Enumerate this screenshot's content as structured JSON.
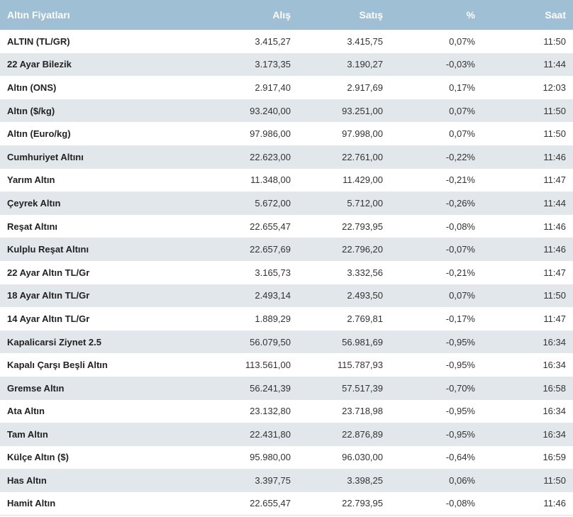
{
  "header": {
    "name": "Altın Fiyatları",
    "buy": "Alış",
    "sell": "Satış",
    "change": "%",
    "time": "Saat"
  },
  "rows": [
    {
      "name": "ALTIN (TL/GR)",
      "buy": "3.415,27",
      "sell": "3.415,75",
      "change": "0,07%",
      "time": "11:50"
    },
    {
      "name": "22 Ayar Bilezik",
      "buy": "3.173,35",
      "sell": "3.190,27",
      "change": "-0,03%",
      "time": "11:44"
    },
    {
      "name": "Altın (ONS)",
      "buy": "2.917,40",
      "sell": "2.917,69",
      "change": "0,17%",
      "time": "12:03"
    },
    {
      "name": "Altın ($/kg)",
      "buy": "93.240,00",
      "sell": "93.251,00",
      "change": "0,07%",
      "time": "11:50"
    },
    {
      "name": "Altın (Euro/kg)",
      "buy": "97.986,00",
      "sell": "97.998,00",
      "change": "0,07%",
      "time": "11:50"
    },
    {
      "name": "Cumhuriyet Altını",
      "buy": "22.623,00",
      "sell": "22.761,00",
      "change": "-0,22%",
      "time": "11:46"
    },
    {
      "name": "Yarım Altın",
      "buy": "11.348,00",
      "sell": "11.429,00",
      "change": "-0,21%",
      "time": "11:47"
    },
    {
      "name": "Çeyrek Altın",
      "buy": "5.672,00",
      "sell": "5.712,00",
      "change": "-0,26%",
      "time": "11:44"
    },
    {
      "name": "Reşat Altını",
      "buy": "22.655,47",
      "sell": "22.793,95",
      "change": "-0,08%",
      "time": "11:46"
    },
    {
      "name": "Kulplu Reşat Altını",
      "buy": "22.657,69",
      "sell": "22.796,20",
      "change": "-0,07%",
      "time": "11:46"
    },
    {
      "name": "22 Ayar Altın TL/Gr",
      "buy": "3.165,73",
      "sell": "3.332,56",
      "change": "-0,21%",
      "time": "11:47"
    },
    {
      "name": "18 Ayar Altın TL/Gr",
      "buy": "2.493,14",
      "sell": "2.493,50",
      "change": "0,07%",
      "time": "11:50"
    },
    {
      "name": "14 Ayar Altın TL/Gr",
      "buy": "1.889,29",
      "sell": "2.769,81",
      "change": "-0,17%",
      "time": "11:47"
    },
    {
      "name": "Kapalicarsi Ziynet 2.5",
      "buy": "56.079,50",
      "sell": "56.981,69",
      "change": "-0,95%",
      "time": "16:34"
    },
    {
      "name": "Kapalı Çarşı Beşli Altın",
      "buy": "113.561,00",
      "sell": "115.787,93",
      "change": "-0,95%",
      "time": "16:34"
    },
    {
      "name": "Gremse Altın",
      "buy": "56.241,39",
      "sell": "57.517,39",
      "change": "-0,70%",
      "time": "16:58"
    },
    {
      "name": "Ata Altın",
      "buy": "23.132,80",
      "sell": "23.718,98",
      "change": "-0,95%",
      "time": "16:34"
    },
    {
      "name": "Tam Altın",
      "buy": "22.431,80",
      "sell": "22.876,89",
      "change": "-0,95%",
      "time": "16:34"
    },
    {
      "name": "Külçe Altın ($)",
      "buy": "95.980,00",
      "sell": "96.030,00",
      "change": "-0,64%",
      "time": "16:59"
    },
    {
      "name": "Has Altın",
      "buy": "3.397,75",
      "sell": "3.398,25",
      "change": "0,06%",
      "time": "11:50"
    },
    {
      "name": "Hamit Altın",
      "buy": "22.655,47",
      "sell": "22.793,95",
      "change": "-0,08%",
      "time": "11:46"
    }
  ],
  "colors": {
    "header_bg": "#9fbfd4",
    "stripe_bg": "#e1e7ea"
  }
}
